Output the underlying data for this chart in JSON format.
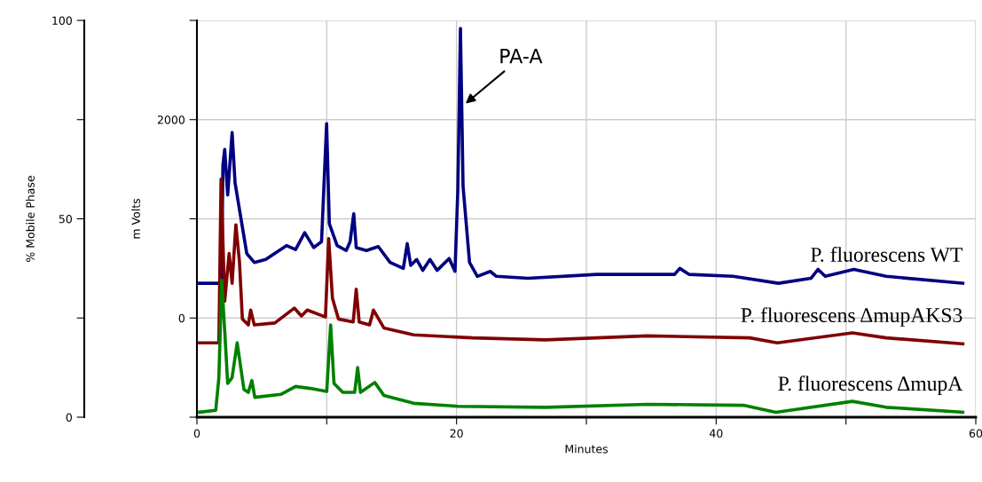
{
  "chart_data": {
    "type": "line",
    "xlabel": "Minutes",
    "ylabel": "m Volts",
    "y2label": "% Mobile Phase",
    "xlim": [
      0,
      60
    ],
    "xticks": [
      0,
      {
        "value": 10,
        "label": null
      },
      20,
      {
        "value": 30,
        "label": null
      },
      40,
      {
        "value": 50,
        "label": null
      },
      60
    ],
    "ylim": [
      -1000,
      3000
    ],
    "yticks": [
      {
        "value": -1000,
        "label": null
      },
      0,
      {
        "value": 1000,
        "label": null
      },
      2000,
      {
        "value": 3000,
        "label": null
      }
    ],
    "y2lim": [
      0,
      100
    ],
    "y2ticks": [
      0,
      {
        "value": 25,
        "label": null
      },
      50,
      {
        "value": 75,
        "label": null
      },
      100
    ],
    "grid": true,
    "legend": false,
    "marker": "none",
    "line_style": "solid",
    "annotations": [
      {
        "text": "PA-A",
        "x": 20.4,
        "y": 2130
      }
    ],
    "series": [
      {
        "name": "P. fluorescens WT",
        "color": "#000080",
        "x": [
          0.2,
          1.9,
          2.0,
          2.14,
          2.37,
          2.71,
          2.94,
          3.84,
          4.42,
          5.3,
          6.9,
          7.6,
          8.3,
          9.0,
          9.6,
          9.99,
          10.2,
          10.8,
          11.5,
          11.8,
          12.08,
          12.27,
          13.06,
          13.97,
          14.88,
          15.9,
          16.2,
          16.47,
          16.93,
          17.4,
          17.95,
          18.5,
          19.43,
          19.88,
          20.1,
          20.3,
          20.5,
          21.0,
          21.6,
          22.6,
          23.07,
          25.5,
          30.8,
          36.8,
          37.2,
          37.9,
          41.3,
          44.8,
          47.3,
          47.85,
          48.4,
          50.6,
          53.1,
          59.0
        ],
        "values": [
          350,
          350,
          1540,
          1700,
          1240,
          1870,
          1360,
          650,
          560,
          590,
          730,
          690,
          860,
          710,
          770,
          1960,
          950,
          730,
          680,
          770,
          1050,
          710,
          680,
          720,
          560,
          500,
          750,
          530,
          590,
          480,
          590,
          480,
          600,
          470,
          1300,
          2920,
          1330,
          560,
          420,
          470,
          420,
          400,
          440,
          440,
          500,
          440,
          420,
          350,
          400,
          490,
          420,
          490,
          420,
          350
        ]
      },
      {
        "name": "P. fluorescens ΔmupAKS3",
        "color": "#800000",
        "x": [
          0.2,
          1.69,
          1.86,
          2.14,
          2.48,
          2.71,
          3.0,
          3.28,
          3.5,
          3.96,
          4.14,
          4.42,
          6.0,
          7.5,
          8.05,
          8.5,
          9.9,
          10.15,
          10.44,
          10.9,
          12.04,
          12.27,
          12.5,
          13.3,
          13.6,
          14.4,
          16.7,
          21.25,
          26.85,
          34.7,
          42.6,
          44.7,
          50.5,
          53.1,
          59.0
        ],
        "values": [
          -250,
          -250,
          1400,
          170,
          650,
          350,
          940,
          560,
          -10,
          -70,
          80,
          -70,
          -50,
          100,
          20,
          80,
          10,
          800,
          200,
          -10,
          -40,
          290,
          -40,
          -70,
          80,
          -100,
          -170,
          -200,
          -220,
          -180,
          -200,
          -250,
          -150,
          -200,
          -260
        ]
      },
      {
        "name": "P. fluorescens ΔmupA",
        "color": "#008000",
        "x": [
          0.2,
          1.45,
          1.69,
          1.91,
          2.14,
          2.37,
          2.71,
          3.1,
          3.62,
          3.96,
          4.23,
          4.46,
          6.46,
          7.6,
          8.74,
          10.0,
          10.3,
          10.56,
          11.24,
          12.15,
          12.38,
          12.6,
          13.7,
          14.4,
          16.7,
          20.1,
          26.85,
          34.7,
          42.1,
          44.6,
          50.5,
          53.1,
          59.0
        ],
        "values": [
          -950,
          -930,
          -600,
          380,
          -130,
          -660,
          -600,
          -250,
          -720,
          -750,
          -630,
          -800,
          -770,
          -690,
          -710,
          -740,
          -70,
          -660,
          -750,
          -750,
          -500,
          -750,
          -650,
          -780,
          -860,
          -890,
          -900,
          -870,
          -880,
          -950,
          -840,
          -900,
          -950
        ]
      }
    ]
  }
}
